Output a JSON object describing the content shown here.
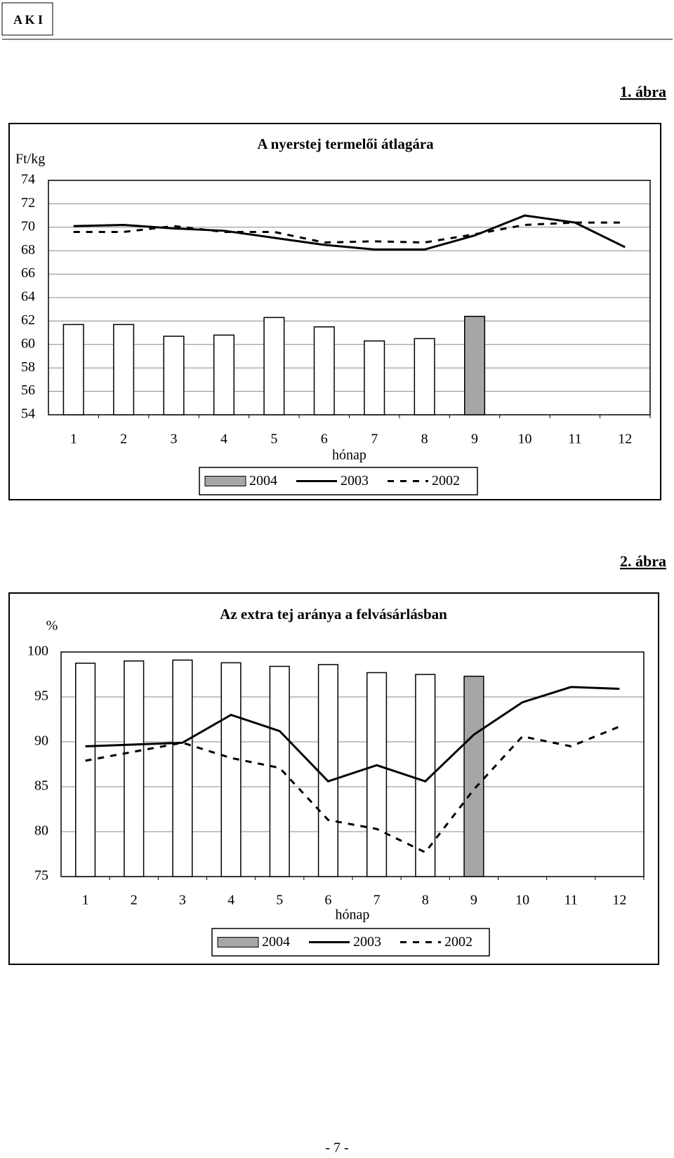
{
  "header": {
    "logo": "A K I"
  },
  "chart_data": [
    {
      "type": "bar_line",
      "figure_label": "1. ábra",
      "title": "A nyerstej termelői átlagára",
      "y_label": "Ft/kg",
      "x_label": "hónap",
      "categories": [
        "1",
        "2",
        "3",
        "4",
        "5",
        "6",
        "7",
        "8",
        "9",
        "10",
        "11",
        "12"
      ],
      "ylim": [
        54,
        74
      ],
      "yticks": [
        54,
        56,
        58,
        60,
        62,
        64,
        66,
        68,
        70,
        72,
        74
      ],
      "grid": true,
      "series": [
        {
          "name": "2004",
          "kind": "bar",
          "color": "#a6a6a6",
          "colors": [
            "#ffffff",
            "#ffffff",
            "#ffffff",
            "#ffffff",
            "#ffffff",
            "#ffffff",
            "#ffffff",
            "#ffffff",
            "#a6a6a6",
            null,
            null,
            null
          ],
          "values": [
            61.7,
            61.7,
            60.7,
            60.8,
            62.3,
            61.5,
            60.3,
            60.5,
            62.4,
            null,
            null,
            null
          ]
        },
        {
          "name": "2003",
          "kind": "line",
          "color": "#000000",
          "dashed": false,
          "values": [
            70.1,
            70.2,
            69.9,
            69.7,
            69.1,
            68.5,
            68.1,
            68.1,
            69.3,
            71.0,
            70.4,
            68.3
          ]
        },
        {
          "name": "2002",
          "kind": "line",
          "color": "#000000",
          "dashed": true,
          "values": [
            69.6,
            69.6,
            70.1,
            69.6,
            69.6,
            68.7,
            68.8,
            68.7,
            69.4,
            70.2,
            70.4,
            70.4
          ]
        }
      ]
    },
    {
      "type": "bar_line",
      "figure_label": "2. ábra",
      "title": "Az extra tej aránya a felvásárlásban",
      "y_label": "%",
      "x_label": "hónap",
      "categories": [
        "1",
        "2",
        "3",
        "4",
        "5",
        "6",
        "7",
        "8",
        "9",
        "10",
        "11",
        "12"
      ],
      "ylim": [
        75,
        100
      ],
      "yticks": [
        75,
        80,
        85,
        90,
        95,
        100
      ],
      "grid": true,
      "series": [
        {
          "name": "2004",
          "kind": "bar",
          "color": "#a6a6a6",
          "colors": [
            "#ffffff",
            "#ffffff",
            "#ffffff",
            "#ffffff",
            "#ffffff",
            "#ffffff",
            "#ffffff",
            "#ffffff",
            "#a6a6a6",
            null,
            null,
            null
          ],
          "values": [
            98.75,
            99.0,
            99.1,
            98.8,
            98.4,
            98.6,
            97.7,
            97.5,
            97.3,
            null,
            null,
            null
          ]
        },
        {
          "name": "2003",
          "kind": "line",
          "color": "#000000",
          "dashed": false,
          "values": [
            89.5,
            89.7,
            89.9,
            93.0,
            91.2,
            85.6,
            87.4,
            85.6,
            90.8,
            94.4,
            96.1,
            95.9
          ]
        },
        {
          "name": "2002",
          "kind": "line",
          "color": "#000000",
          "dashed": true,
          "values": [
            87.9,
            88.9,
            89.9,
            88.2,
            87.1,
            81.3,
            80.3,
            77.7,
            84.7,
            90.6,
            89.5,
            91.7
          ]
        }
      ]
    }
  ],
  "page_number": "- 7 -"
}
